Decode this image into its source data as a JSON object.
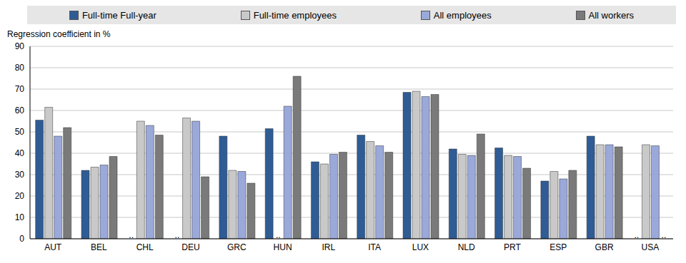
{
  "chart_data": {
    "type": "bar",
    "y_label": "Regression coefficient in %",
    "categories": [
      "AUT",
      "BEL",
      "CHL",
      "DEU",
      "GRC",
      "HUN",
      "IRL",
      "ITA",
      "LUX",
      "NLD",
      "PRT",
      "ESP",
      "GBR",
      "USA"
    ],
    "series": [
      {
        "name": "Full-time Full-year",
        "color": "#2f5c95",
        "values": [
          55.5,
          32,
          null,
          null,
          48,
          51.5,
          36,
          48.5,
          68.5,
          42,
          42.5,
          27,
          48,
          null
        ],
        "value_labels": [
          null,
          null,
          "..",
          "..",
          null,
          null,
          null,
          null,
          null,
          null,
          null,
          null,
          null,
          ".."
        ]
      },
      {
        "name": "Full-time employees",
        "color": "#c9c9c9",
        "values": [
          61.5,
          33.5,
          55,
          56.5,
          32,
          null,
          35,
          45.5,
          69,
          39.5,
          39,
          31.5,
          44,
          44
        ],
        "value_labels": [
          null,
          null,
          null,
          null,
          null,
          "..",
          null,
          null,
          null,
          null,
          null,
          null,
          null,
          null
        ]
      },
      {
        "name": "All employees",
        "color": "#9aa9d9",
        "values": [
          48,
          34.5,
          53,
          55,
          31.5,
          62,
          39.5,
          43.5,
          66.5,
          39,
          38.5,
          28,
          44,
          43.5
        ]
      },
      {
        "name": "All workers",
        "color": "#7a7a7a",
        "values": [
          52,
          38.5,
          48.5,
          29,
          26,
          76,
          40.5,
          40.5,
          67.5,
          49,
          33,
          32,
          43,
          null
        ],
        "value_labels": [
          null,
          null,
          null,
          null,
          null,
          null,
          null,
          null,
          null,
          null,
          null,
          null,
          null,
          ".."
        ]
      }
    ],
    "ylim": [
      0,
      90
    ],
    "yticks": [
      0,
      10,
      20,
      30,
      40,
      50,
      60,
      70,
      80,
      90
    ],
    "grid": true,
    "legend": "top"
  }
}
